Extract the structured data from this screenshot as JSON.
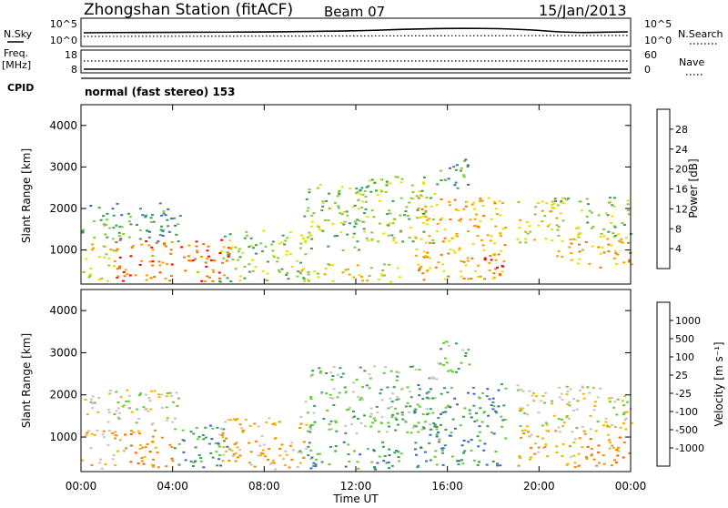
{
  "header": {
    "station": "Zhongshan Station (fitACF)",
    "beam": "Beam 07",
    "date": "15/Jan/2013"
  },
  "noise_panel": {
    "left_label": "N.Sky",
    "left_ticks": [
      "10^5",
      "10^0"
    ],
    "right_label": "N.Search",
    "right_ticks": [
      "10^5",
      "10^0"
    ]
  },
  "freq_panel": {
    "left_label_1": "Freq.",
    "left_label_2": "[MHz]",
    "left_ticks": [
      "18",
      "8"
    ],
    "right_label": "Nave",
    "right_ticks": [
      "60",
      "0"
    ]
  },
  "cpid": {
    "label": "CPID",
    "text": "normal (fast stereo) 153"
  },
  "chart_data": [
    {
      "type": "heatmap",
      "panel": "power",
      "ylabel": "Slant Range [km]",
      "ylim": [
        180,
        4500
      ],
      "yticks": [
        "1000",
        "2000",
        "3000",
        "4000"
      ],
      "xlim": [
        0,
        24
      ],
      "colorbar_label": "Power [dB]",
      "colorbar_ticks": [
        "28",
        "24",
        "20",
        "16",
        "12",
        "8",
        "4"
      ],
      "colors": [
        "#ff0000",
        "#f07800",
        "#f0a400",
        "#e8e000",
        "#88c83c",
        "#3c9a5a",
        "#3c64c8",
        "#0000ff"
      ],
      "scatter_bands": [
        {
          "t0": 0.0,
          "t1": 4.3,
          "r0": 1200,
          "r1": 2150,
          "level": 2
        },
        {
          "t0": 0.0,
          "t1": 1.5,
          "r0": 250,
          "r1": 1200,
          "level": 4
        },
        {
          "t0": 1.5,
          "t1": 6.5,
          "r0": 250,
          "r1": 1300,
          "level": 6
        },
        {
          "t0": 6.0,
          "t1": 10.0,
          "r0": 250,
          "r1": 1500,
          "level": 3
        },
        {
          "t0": 9.7,
          "t1": 12.5,
          "r0": 1000,
          "r1": 2600,
          "level": 3
        },
        {
          "t0": 9.5,
          "t1": 14.0,
          "r0": 250,
          "r1": 700,
          "level": 4
        },
        {
          "t0": 12.0,
          "t1": 15.5,
          "r0": 1200,
          "r1": 2800,
          "level": 3
        },
        {
          "t0": 14.5,
          "t1": 18.5,
          "r0": 300,
          "r1": 2300,
          "level": 5
        },
        {
          "t0": 15.5,
          "t1": 17.0,
          "r0": 2500,
          "r1": 3300,
          "level": 2
        },
        {
          "t0": 17.5,
          "t1": 18.5,
          "r0": 400,
          "r1": 900,
          "level": 7
        },
        {
          "t0": 19.0,
          "t1": 21.0,
          "r0": 1200,
          "r1": 2200,
          "level": 4
        },
        {
          "t0": 20.5,
          "t1": 24.0,
          "r0": 1300,
          "r1": 2300,
          "level": 3
        },
        {
          "t0": 20.5,
          "t1": 24.0,
          "r0": 600,
          "r1": 1300,
          "level": 5
        }
      ]
    },
    {
      "type": "heatmap",
      "panel": "velocity",
      "ylabel": "Slant Range [km]",
      "xlabel": "Time UT",
      "ylim": [
        180,
        4500
      ],
      "yticks": [
        "1000",
        "2000",
        "3000",
        "4000"
      ],
      "xlim": [
        0,
        24
      ],
      "xticks": [
        "00:00",
        "04:00",
        "08:00",
        "12:00",
        "16:00",
        "20:00",
        "00:00"
      ],
      "colorbar_label": "Velocity [m s⁻¹]",
      "colorbar_ticks": [
        "1000",
        "500",
        "100",
        "25",
        "-25",
        "-100",
        "-500",
        "-1000"
      ],
      "colors": [
        "#ff0000",
        "#f06400",
        "#f08c00",
        "#f0b800",
        "#c8c4bc",
        "#66cc33",
        "#3c9a5a",
        "#3c64c8",
        "#1414c8"
      ],
      "scatter_bands": [
        {
          "t0": 0.0,
          "t1": 4.3,
          "r0": 1300,
          "r1": 2150,
          "level": 4
        },
        {
          "t0": 0.0,
          "t1": 1.5,
          "r0": 250,
          "r1": 1200,
          "level": 5
        },
        {
          "t0": 1.5,
          "t1": 4.0,
          "r0": 300,
          "r1": 1200,
          "level": 6
        },
        {
          "t0": 4.0,
          "t1": 6.5,
          "r0": 250,
          "r1": 1300,
          "level": 2
        },
        {
          "t0": 6.0,
          "t1": 10.0,
          "r0": 250,
          "r1": 1500,
          "level": 5
        },
        {
          "t0": 9.5,
          "t1": 14.0,
          "r0": 250,
          "r1": 900,
          "level": 2
        },
        {
          "t0": 9.7,
          "t1": 15.5,
          "r0": 1100,
          "r1": 2700,
          "level": 3
        },
        {
          "t0": 14.5,
          "t1": 18.5,
          "r0": 300,
          "r1": 2300,
          "level": 2
        },
        {
          "t0": 15.5,
          "t1": 17.0,
          "r0": 2500,
          "r1": 3300,
          "level": 3
        },
        {
          "t0": 19.0,
          "t1": 24.0,
          "r0": 1200,
          "r1": 2300,
          "level": 4
        },
        {
          "t0": 19.0,
          "t1": 22.0,
          "r0": 300,
          "r1": 1200,
          "level": 5
        },
        {
          "t0": 22.0,
          "t1": 24.0,
          "r0": 300,
          "r1": 1200,
          "level": 6
        }
      ]
    }
  ]
}
